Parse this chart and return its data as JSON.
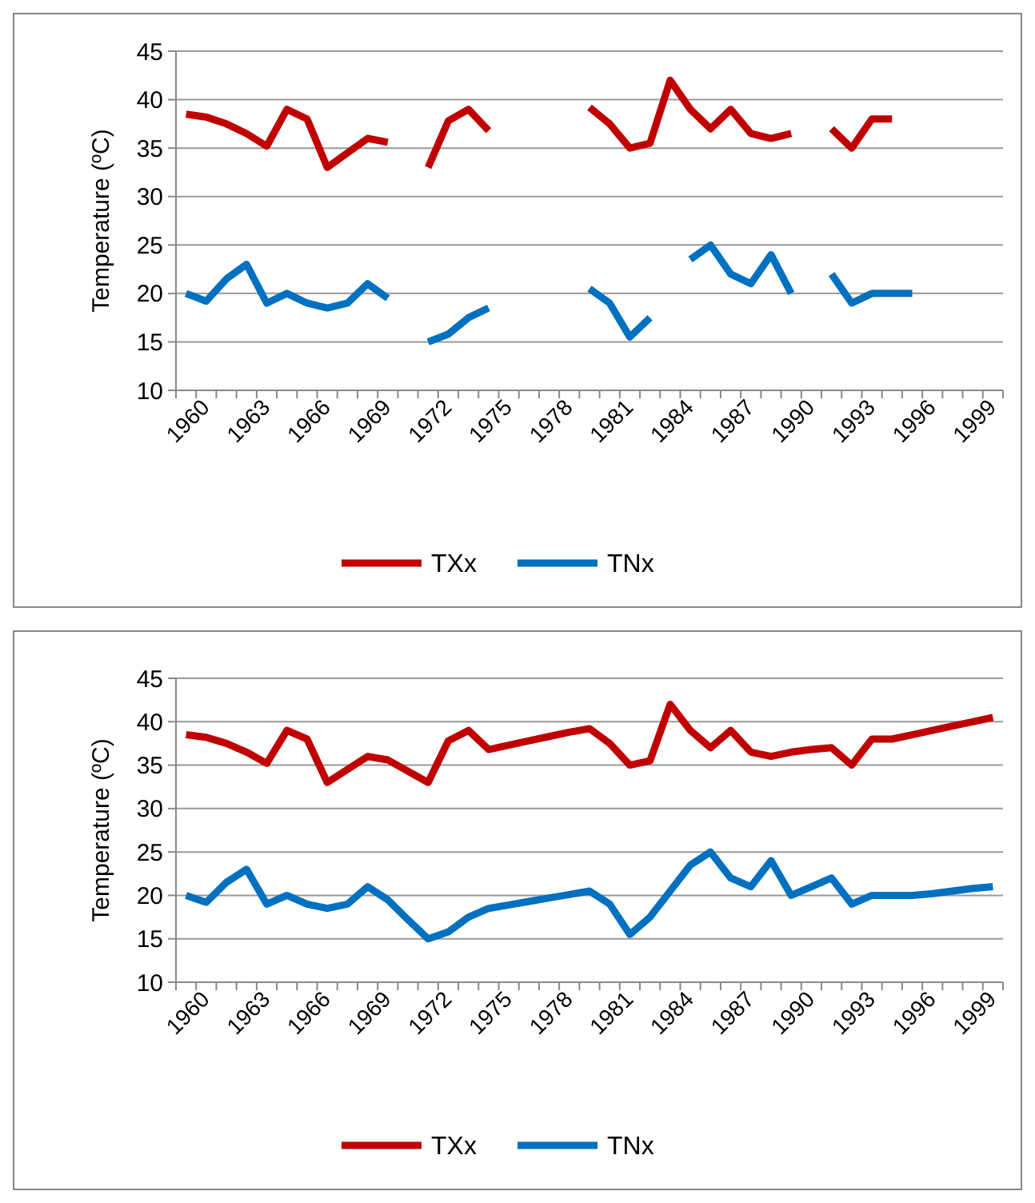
{
  "chart_data": [
    {
      "type": "line",
      "ylabel": "Temperature (ºC)",
      "categories": [
        "1960",
        null,
        null,
        "1963",
        null,
        null,
        "1966",
        null,
        null,
        "1969",
        null,
        null,
        "1972",
        null,
        null,
        "1975",
        null,
        null,
        "1978",
        null,
        null,
        "1981",
        null,
        null,
        "1984",
        null,
        null,
        "1987",
        null,
        null,
        "1990",
        null,
        null,
        "1993",
        null,
        null,
        "1996",
        null,
        null,
        "1999",
        null
      ],
      "ylim": [
        10,
        45
      ],
      "yticks": [
        10,
        15,
        20,
        25,
        30,
        35,
        40,
        45
      ],
      "grid": "y",
      "legend": "bottom",
      "marker": "none",
      "series": [
        {
          "name": "TXx",
          "color": "#c00000",
          "values": [
            38.5,
            38.2,
            37.5,
            36.5,
            35.2,
            39,
            38,
            33,
            34.5,
            36,
            35.6,
            null,
            33,
            37.8,
            39,
            36.8,
            null,
            null,
            null,
            null,
            39.2,
            37.5,
            35,
            35.5,
            42,
            39,
            37,
            39,
            36.5,
            36,
            36.5,
            null,
            37,
            35,
            38,
            38,
            null,
            null,
            null,
            null,
            null
          ]
        },
        {
          "name": "TNx",
          "color": "#0070c0",
          "values": [
            20,
            19.2,
            21.5,
            23,
            19,
            20,
            19,
            18.5,
            19,
            21,
            19.5,
            null,
            15,
            15.8,
            17.5,
            18.5,
            null,
            null,
            null,
            null,
            20.5,
            19,
            15.5,
            17.5,
            null,
            23.5,
            25,
            22,
            21,
            24,
            20,
            null,
            22,
            19,
            20,
            20,
            20,
            null,
            null,
            null,
            null
          ]
        }
      ]
    },
    {
      "type": "line",
      "ylabel": "Temperature (ºC)",
      "categories": [
        "1960",
        null,
        null,
        "1963",
        null,
        null,
        "1966",
        null,
        null,
        "1969",
        null,
        null,
        "1972",
        null,
        null,
        "1975",
        null,
        null,
        "1978",
        null,
        null,
        "1981",
        null,
        null,
        "1984",
        null,
        null,
        "1987",
        null,
        null,
        "1990",
        null,
        null,
        "1993",
        null,
        null,
        "1996",
        null,
        null,
        "1999",
        null
      ],
      "ylim": [
        10,
        45
      ],
      "yticks": [
        10,
        15,
        20,
        25,
        30,
        35,
        40,
        45
      ],
      "grid": "y",
      "legend": "bottom",
      "marker": "none",
      "series": [
        {
          "name": "TXx",
          "color": "#c00000",
          "values": [
            38.5,
            38.2,
            37.5,
            36.5,
            35.2,
            39,
            38,
            33,
            34.5,
            36,
            35.6,
            34.3,
            33,
            37.8,
            39,
            36.8,
            37.3,
            37.8,
            38.3,
            38.8,
            39.2,
            37.5,
            35,
            35.5,
            42,
            39,
            37,
            39,
            36.5,
            36,
            36.5,
            36.8,
            37,
            35,
            38,
            38,
            38.5,
            39,
            39.5,
            40,
            40.5
          ]
        },
        {
          "name": "TNx",
          "color": "#0070c0",
          "values": [
            20,
            19.2,
            21.5,
            23,
            19,
            20,
            19,
            18.5,
            19,
            21,
            19.5,
            17.2,
            15,
            15.8,
            17.5,
            18.5,
            18.9,
            19.3,
            19.7,
            20.1,
            20.5,
            19,
            15.5,
            17.5,
            20.5,
            23.5,
            25,
            22,
            21,
            24,
            20,
            21,
            22,
            19,
            20,
            20,
            20,
            20.2,
            20.5,
            20.8,
            21
          ]
        }
      ]
    }
  ]
}
